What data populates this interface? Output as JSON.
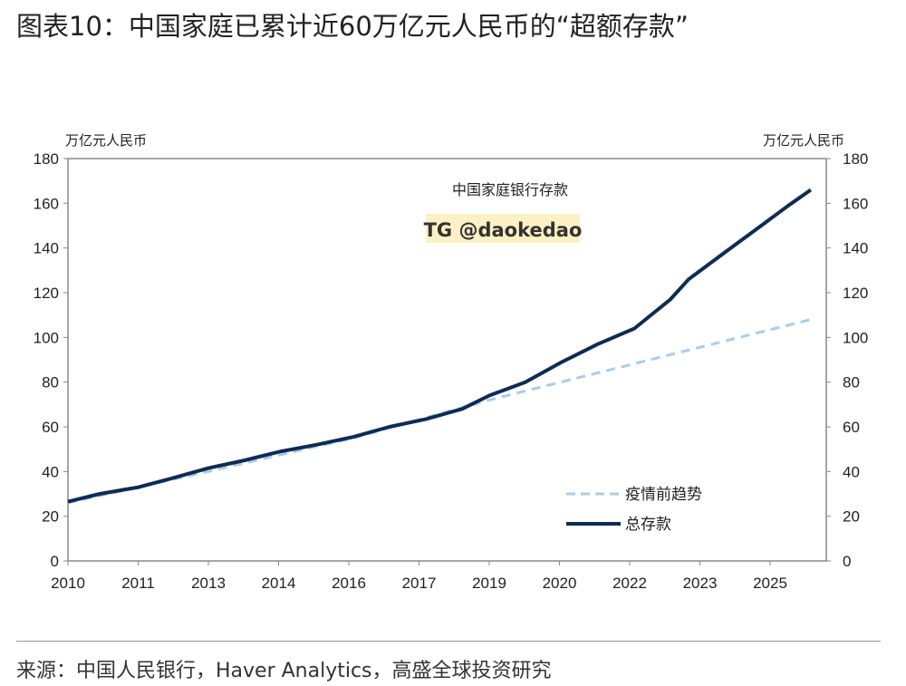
{
  "title": "图表10：中国家庭已累计近60万亿元人民币的“超额存款”",
  "source": "来源：中国人民银行，Haver Analytics，高盛全球投资研究",
  "chart_data": {
    "type": "line",
    "title": "中国家庭银行存款",
    "watermark": "TG @daokedao",
    "ylabel_left": "万亿元人民币",
    "ylabel_right": "万亿元人民币",
    "ylim": [
      0,
      180
    ],
    "yticks": [
      0,
      20,
      40,
      60,
      80,
      100,
      120,
      140,
      160,
      180
    ],
    "xticks": [
      {
        "t": 2010,
        "label": "2010"
      },
      {
        "t": 2011.5,
        "label": "2011"
      },
      {
        "t": 2013,
        "label": "2013"
      },
      {
        "t": 2014.5,
        "label": "2014"
      },
      {
        "t": 2016,
        "label": "2016"
      },
      {
        "t": 2017.5,
        "label": "2017"
      },
      {
        "t": 2019,
        "label": "2019"
      },
      {
        "t": 2020.5,
        "label": "2020"
      },
      {
        "t": 2022,
        "label": "2022"
      },
      {
        "t": 2023.5,
        "label": "2023"
      },
      {
        "t": 2025,
        "label": "2025"
      }
    ],
    "xlim": [
      2010,
      2026.2
    ],
    "series": [
      {
        "name": "疫情前趋势",
        "style": "dashed",
        "color": "#a9cdea",
        "x": [
          2010,
          2013,
          2016.1,
          2019,
          2025.87
        ],
        "y": [
          26,
          40,
          55,
          72,
          108
        ]
      },
      {
        "name": "总存款",
        "style": "solid",
        "color": "#0d2b55",
        "x": [
          2010,
          2010.68,
          2011.51,
          2012.23,
          2013,
          2013.77,
          2014.55,
          2015.32,
          2016.1,
          2016.87,
          2017.65,
          2018.42,
          2019,
          2019.77,
          2020.55,
          2021.32,
          2022.1,
          2022.87,
          2023.26,
          2024.03,
          2024.81,
          2025.39,
          2025.87
        ],
        "y": [
          26.5,
          30,
          33,
          37,
          41.5,
          45,
          49,
          52,
          55.5,
          60,
          63.5,
          68,
          74,
          80,
          89,
          97,
          104,
          117,
          126,
          138,
          150,
          159,
          166
        ]
      }
    ],
    "legend": "bottom-right"
  }
}
